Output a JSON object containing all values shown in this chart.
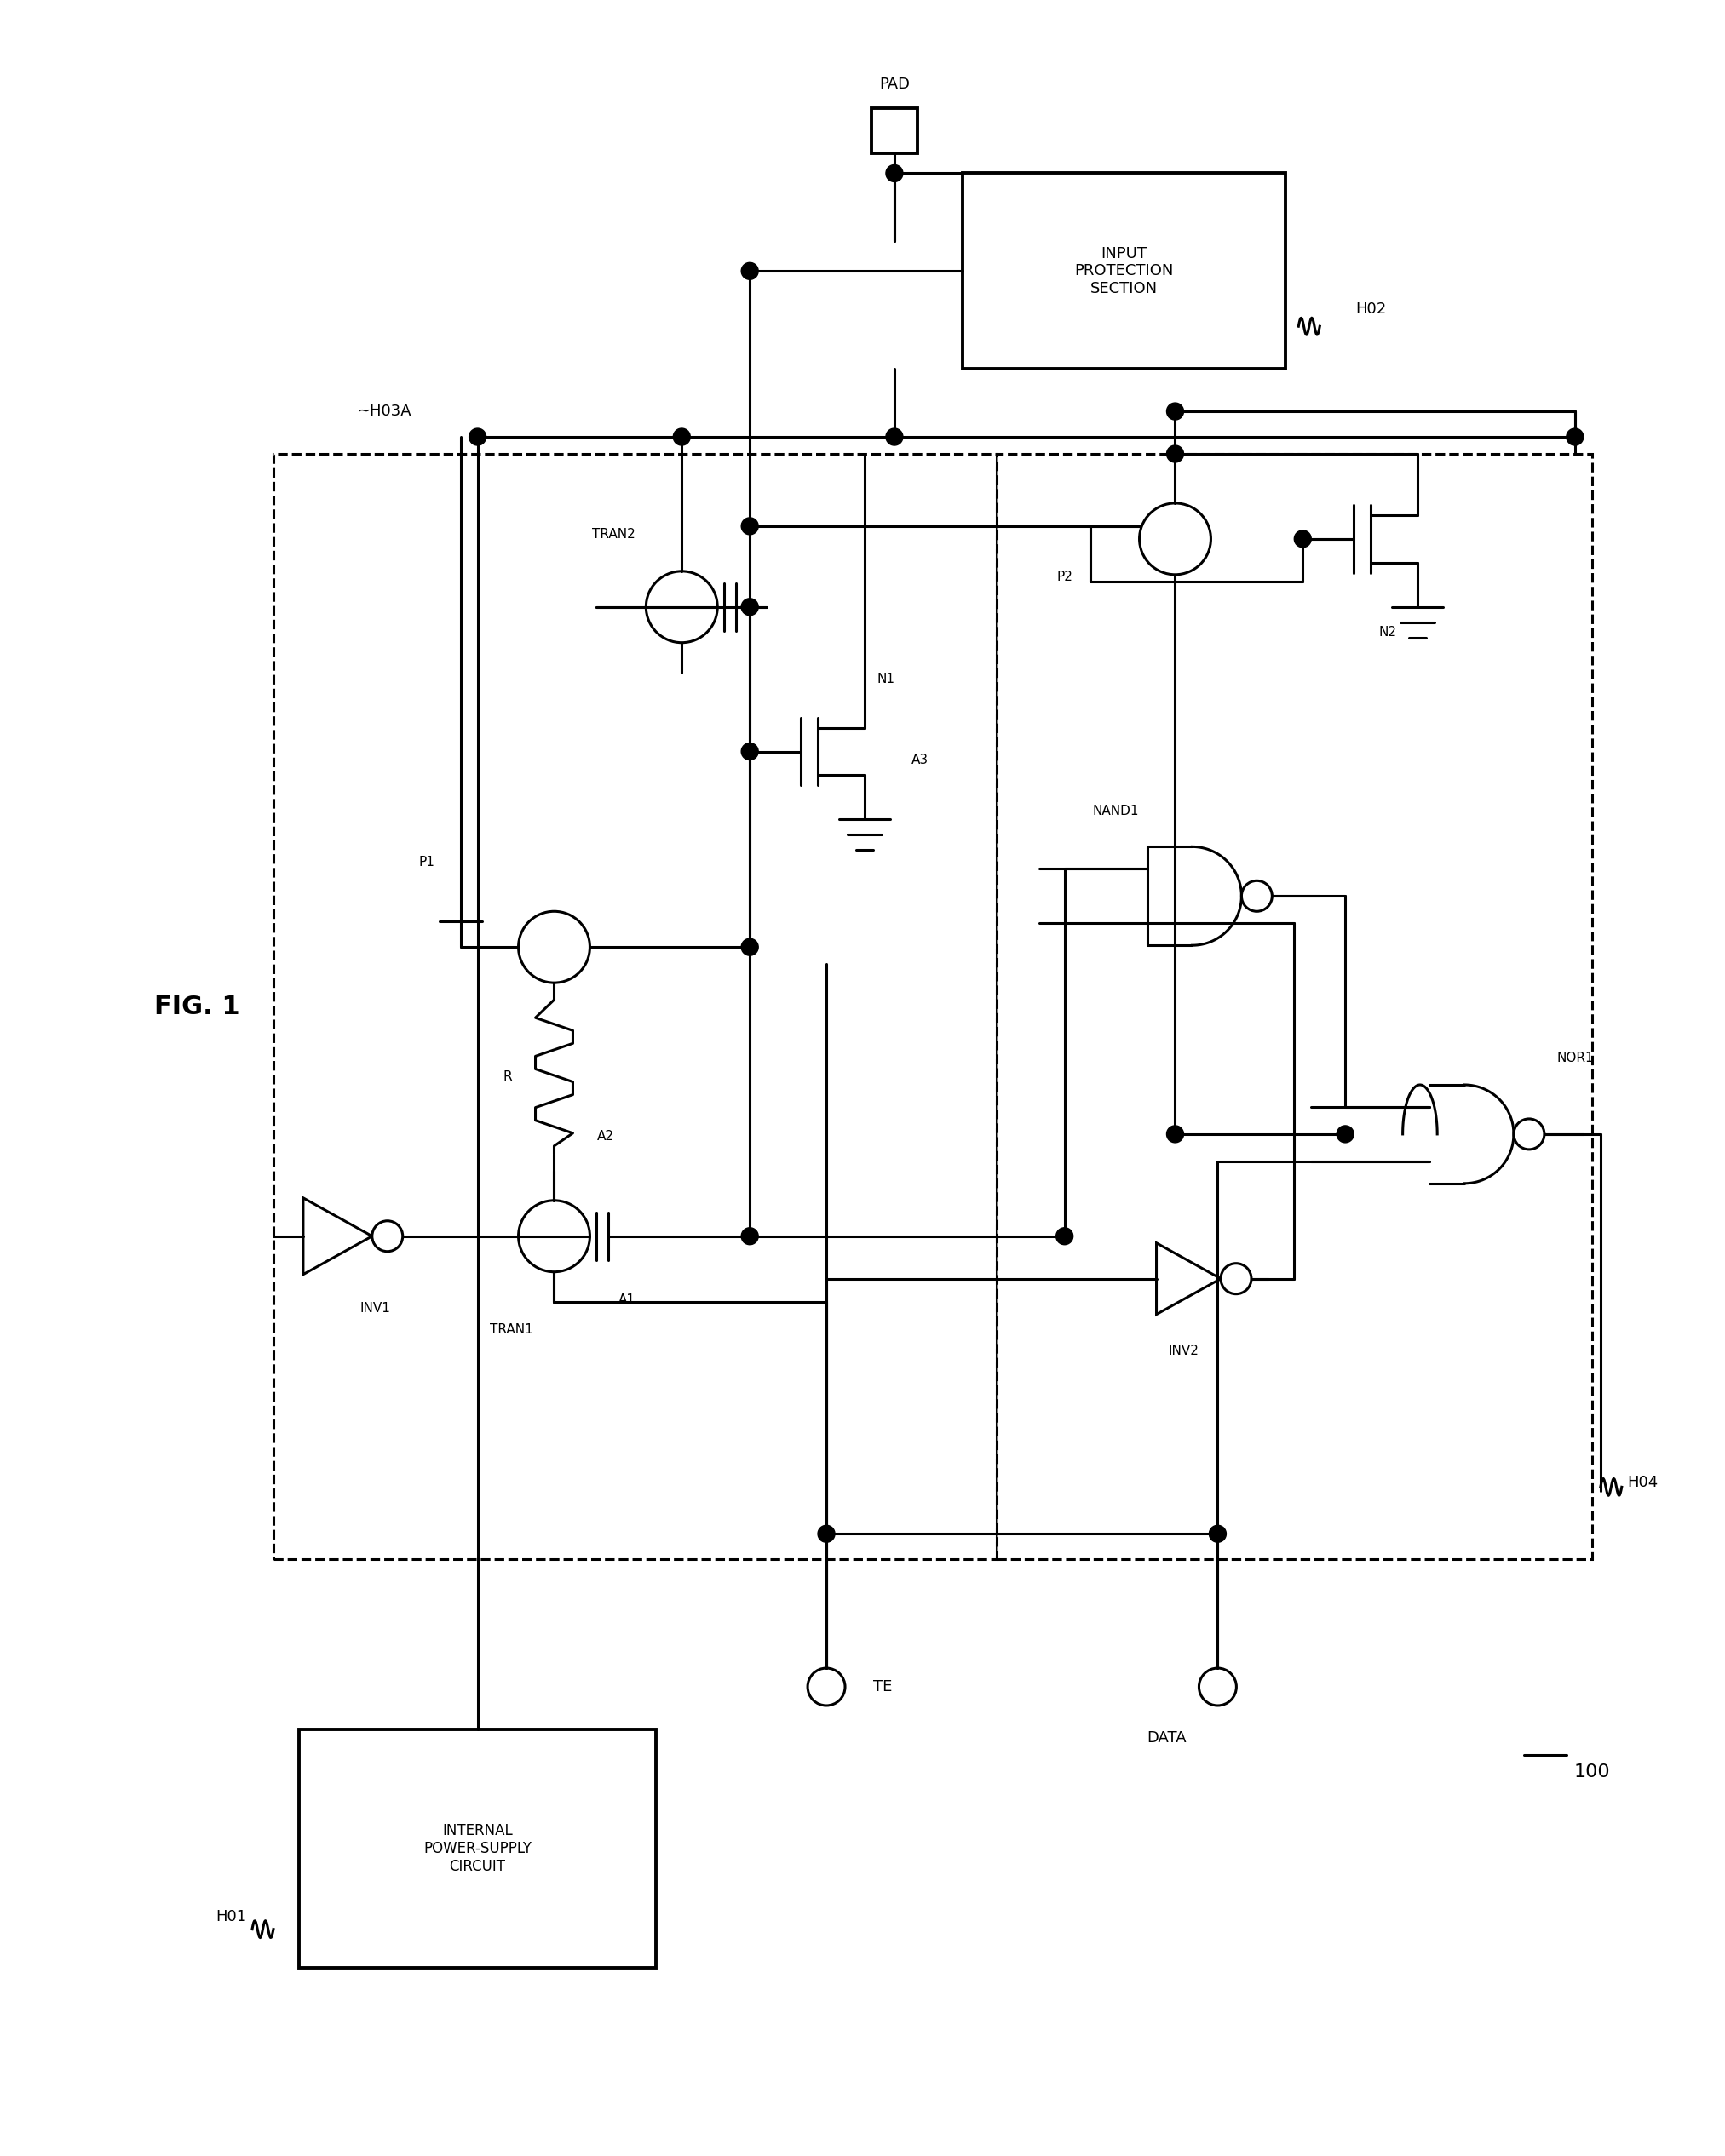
{
  "title": "FIG. 1",
  "bg_color": "#ffffff",
  "line_color": "#000000",
  "fig_label": "100",
  "labels": {
    "H01": "H01",
    "H02": "H02",
    "H03A": "~H03A",
    "H04": "H04",
    "PAD": "PAD",
    "TE": "TE",
    "DATA": "DATA",
    "INV1": "INV1",
    "INV2": "INV2",
    "TRAN1": "TRAN1",
    "TRAN2": "TRAN2",
    "P1": "P1",
    "P2": "P2",
    "N1": "N1",
    "N2": "N2",
    "R": "R",
    "A1": "A1",
    "A2": "A2",
    "A3": "A3",
    "NAND1": "NAND1",
    "NOR1": "NOR1",
    "internal_ps": "INTERNAL\nPOWER-SUPPLY\nCIRCUIT",
    "input_prot": "INPUT\nPROTECTION\nSECTION"
  }
}
